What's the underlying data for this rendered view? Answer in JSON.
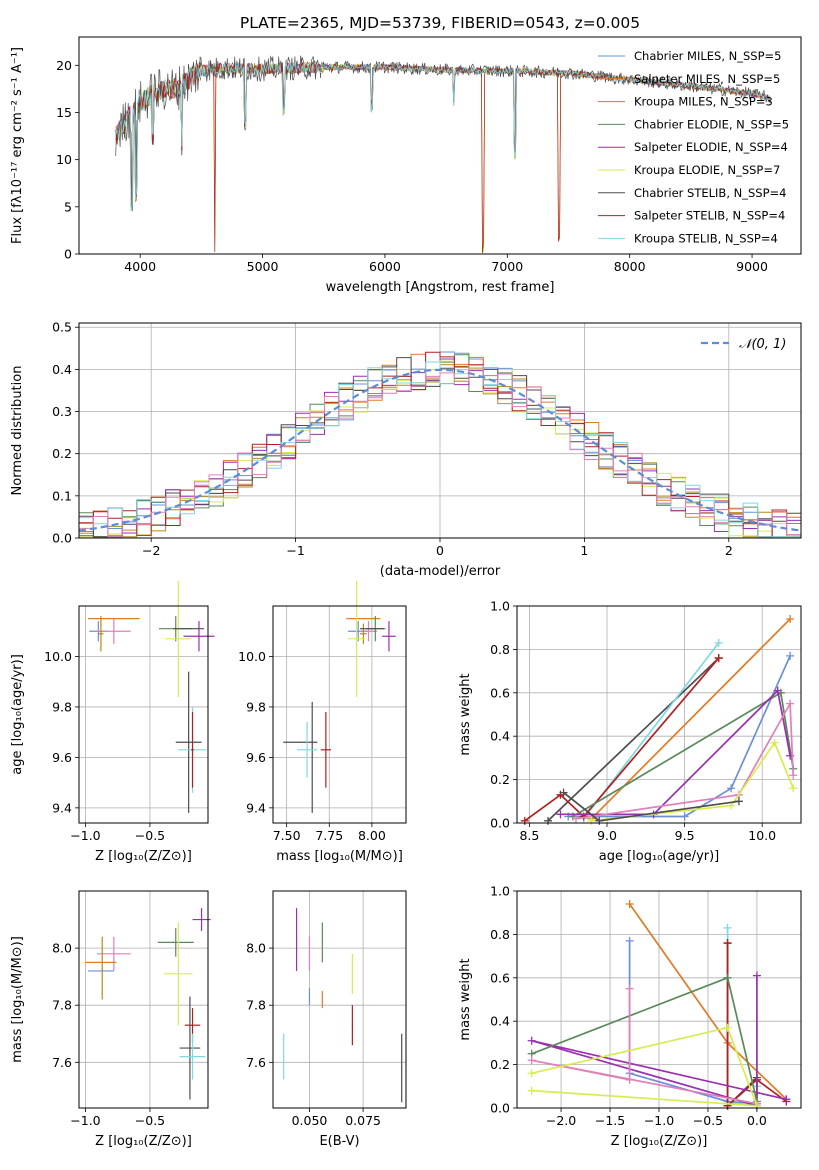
{
  "colors": {
    "chabrier_miles": "#6a8fd8",
    "salpeter_miles": "#e07b26",
    "kroupa_miles": "#b48a18",
    "chabrier_elodie": "#5a8a5a",
    "salpeter_elodie": "#9b2fb0",
    "kroupa_elodie": "#d8ec50",
    "chabrier_stelib": "#4d4d4d",
    "salpeter_stelib": "#b02020",
    "kroupa_stelib": "#7fd8e0",
    "pink": "#e27fb8",
    "gaussian": "#5b8ed6",
    "grid": "#b0b0b0"
  },
  "chart_data": [
    {
      "id": "spectrum",
      "type": "line",
      "title": "PLATE=2365, MJD=53739, FIBERID=0543, z=0.005",
      "xlabel": "wavelength [Angstrom, rest frame]",
      "ylabel": "Flux [fλ10⁻¹⁷ erg cm⁻² s⁻¹ A⁻¹]",
      "xlim": [
        3500,
        9400
      ],
      "ylim": [
        0,
        23
      ],
      "xticks": [
        "4000",
        "5000",
        "6000",
        "7000",
        "8000",
        "9000"
      ],
      "yticks": [
        "0",
        "5",
        "10",
        "15",
        "20"
      ],
      "grid": false,
      "legend_position": "top-right",
      "legend": [
        "Chabrier MILES, N_SSP=5",
        "Salpeter MILES, N_SSP=5",
        "Kroupa MILES, N_SSP=3",
        "Chabrier ELODIE, N_SSP=5",
        "Salpeter ELODIE, N_SSP=4",
        "Kroupa ELODIE, N_SSP=7",
        "Chabrier STELIB, N_SSP=4",
        "Salpeter STELIB, N_SSP=4",
        "Kroupa STELIB, N_SSP=4"
      ],
      "continuum": {
        "x": [
          3800,
          3900,
          4000,
          4100,
          4200,
          4300,
          4400,
          4500,
          4700,
          5000,
          5500,
          6000,
          6500,
          7000,
          7500,
          8000,
          8500,
          9000,
          9150
        ],
        "y": [
          12.5,
          14.5,
          16,
          17,
          17.5,
          17.5,
          18.5,
          19.5,
          19.7,
          19.6,
          19.8,
          19.8,
          19.5,
          19.4,
          19.2,
          18.5,
          17.8,
          17.0,
          16.5
        ]
      },
      "absorption_features": [
        {
          "x": 3933,
          "y": 4.5
        },
        {
          "x": 3968,
          "y": 5.5
        },
        {
          "x": 4101,
          "y": 11.5
        },
        {
          "x": 4340,
          "y": 10.2
        },
        {
          "x": 4610,
          "y": 0
        },
        {
          "x": 4861,
          "y": 13.0
        },
        {
          "x": 5175,
          "y": 14.5
        },
        {
          "x": 5890,
          "y": 15.0
        },
        {
          "x": 6563,
          "y": 15.5
        },
        {
          "x": 6800,
          "y": 0
        },
        {
          "x": 7060,
          "y": 10.0
        },
        {
          "x": 7420,
          "y": 0.8
        }
      ]
    },
    {
      "id": "residuals",
      "type": "line",
      "xlabel": "(data-model)/error",
      "ylabel": "Normed distribution",
      "xlim": [
        -2.5,
        2.5
      ],
      "ylim": [
        0,
        0.51
      ],
      "xticks": [
        "−2",
        "−1",
        "0",
        "1",
        "2"
      ],
      "yticks": [
        "0.0",
        "0.1",
        "0.2",
        "0.3",
        "0.4",
        "0.5"
      ],
      "grid": true,
      "legend_position": "top-right",
      "legend": [
        "𝒩(0, 1)"
      ]
    },
    {
      "id": "age_vs_Z",
      "type": "scatter",
      "xlabel": "Z [log₁₀(Z/Z⊙)]",
      "ylabel": "age  [log₁₀(age/yr)]",
      "xlim": [
        -1.05,
        -0.05
      ],
      "ylim": [
        9.34,
        10.2
      ],
      "xticks": [
        "−1.0",
        "−0.5"
      ],
      "yticks": [
        "9.4",
        "9.6",
        "9.8",
        "10.0"
      ],
      "grid": true,
      "points": [
        {
          "c": "salpeter_miles",
          "x": -0.78,
          "y": 10.15,
          "xe": 0.2,
          "ye": 0.0
        },
        {
          "c": "chabrier_miles",
          "x": -0.9,
          "y": 10.1,
          "xe": 0.07,
          "ye": 0.04
        },
        {
          "c": "pink",
          "x": -0.78,
          "y": 10.1,
          "xe": 0.13,
          "ye": 0.05
        },
        {
          "c": "kroupa_miles",
          "x": -0.88,
          "y": 10.09,
          "xe": 0.02,
          "ye": 0.07
        },
        {
          "c": "chabrier_elodie",
          "x": -0.3,
          "y": 10.11,
          "xe": 0.13,
          "ye": 0.05
        },
        {
          "c": "kroupa_elodie",
          "x": -0.28,
          "y": 10.07,
          "xe": 0.1,
          "ye": 0.23
        },
        {
          "c": "salpeter_elodie",
          "x": -0.12,
          "y": 10.08,
          "xe": 0.12,
          "ye": 0.06
        },
        {
          "c": "chabrier_stelib",
          "x": -0.2,
          "y": 10.11,
          "xe": 0.12,
          "ye": 0.0
        },
        {
          "c": "chabrier_stelib",
          "x": -0.2,
          "y": 9.66,
          "xe": 0.1,
          "ye": 0.28
        },
        {
          "c": "kroupa_stelib",
          "x": -0.17,
          "y": 9.63,
          "xe": 0.11,
          "ye": 0.17
        },
        {
          "c": "salpeter_stelib",
          "x": -0.17,
          "y": 9.63,
          "xe": 0.01,
          "ye": 0.15
        }
      ]
    },
    {
      "id": "age_vs_mass",
      "type": "scatter",
      "xlabel": "mass [log₁₀(M/M⊙)]",
      "ylabel": "",
      "xlim": [
        7.42,
        8.2
      ],
      "ylim": [
        9.34,
        10.2
      ],
      "xticks": [
        "7.50",
        "7.75",
        "8.00"
      ],
      "yticks": [
        "9.4",
        "9.6",
        "9.8",
        "10.0"
      ],
      "grid": true,
      "points": [
        {
          "c": "salpeter_miles",
          "x": 7.95,
          "y": 10.15,
          "xe": 0.1,
          "ye": 0.0
        },
        {
          "c": "chabrier_miles",
          "x": 7.92,
          "y": 10.1,
          "xe": 0.06,
          "ye": 0.04
        },
        {
          "c": "pink",
          "x": 7.98,
          "y": 10.1,
          "xe": 0.05,
          "ye": 0.04
        },
        {
          "c": "kroupa_miles",
          "x": 7.95,
          "y": 10.09,
          "xe": 0.02,
          "ye": 0.04
        },
        {
          "c": "kroupa_elodie",
          "x": 7.91,
          "y": 10.07,
          "xe": 0.05,
          "ye": 0.23
        },
        {
          "c": "chabrier_elodie",
          "x": 8.02,
          "y": 10.11,
          "xe": 0.06,
          "ye": 0.05
        },
        {
          "c": "chabrier_stelib",
          "x": 8.0,
          "y": 10.11,
          "xe": 0.07,
          "ye": 0.0
        },
        {
          "c": "salpeter_elodie",
          "x": 8.1,
          "y": 10.08,
          "xe": 0.04,
          "ye": 0.06
        },
        {
          "c": "chabrier_stelib",
          "x": 7.58,
          "y": 9.66,
          "xe": 0.1,
          "ye": 0.0
        },
        {
          "c": "chabrier_stelib",
          "x": 7.65,
          "y": 9.6,
          "xe": 0.0,
          "ye": 0.22
        },
        {
          "c": "kroupa_stelib",
          "x": 7.62,
          "y": 9.63,
          "xe": 0.06,
          "ye": 0.11
        },
        {
          "c": "salpeter_stelib",
          "x": 7.73,
          "y": 9.63,
          "xe": 0.03,
          "ye": 0.15
        }
      ]
    },
    {
      "id": "mass_weight_vs_age",
      "type": "line",
      "xlabel": "age  [log₁₀(age/yr)]",
      "ylabel": "mass weight",
      "xlim": [
        8.42,
        10.25
      ],
      "ylim": [
        0,
        1
      ],
      "xticks": [
        "8.5",
        "9.0",
        "9.5",
        "10.0"
      ],
      "yticks": [
        "0.0",
        "0.2",
        "0.4",
        "0.6",
        "0.8",
        "1.0"
      ],
      "grid": true,
      "series": [
        {
          "c": "salpeter_miles",
          "x": [
            8.9,
            10.18
          ],
          "y": [
            0.02,
            0.94
          ]
        },
        {
          "c": "chabrier_stelib",
          "x": [
            8.62,
            9.72
          ],
          "y": [
            0.01,
            0.76
          ]
        },
        {
          "c": "kroupa_stelib",
          "x": [
            8.85,
            9.72
          ],
          "y": [
            0.02,
            0.83
          ]
        },
        {
          "c": "chabrier_miles",
          "x": [
            8.75,
            9.5,
            9.8,
            10.18
          ],
          "y": [
            0.03,
            0.03,
            0.16,
            0.77
          ]
        },
        {
          "c": "salpeter_stelib",
          "x": [
            8.47,
            8.7,
            8.85,
            9.72
          ],
          "y": [
            0.01,
            0.13,
            0.03,
            0.76
          ]
        },
        {
          "c": "chabrier_elodie",
          "x": [
            8.78,
            10.12,
            10.2
          ],
          "y": [
            0.03,
            0.6,
            0.25
          ]
        },
        {
          "c": "salpeter_elodie",
          "x": [
            8.7,
            9.3,
            10.1,
            10.18
          ],
          "y": [
            0.04,
            0.04,
            0.61,
            0.31
          ]
        },
        {
          "c": "pink",
          "x": [
            8.8,
            9.85,
            10.18,
            10.2
          ],
          "y": [
            0.02,
            0.13,
            0.55,
            0.22
          ]
        },
        {
          "c": "kroupa_elodie",
          "x": [
            8.9,
            9.8,
            10.08,
            10.2
          ],
          "y": [
            0.01,
            0.08,
            0.37,
            0.16
          ]
        },
        {
          "c": "chabrier_stelib",
          "x": [
            8.72,
            8.95,
            9.85
          ],
          "y": [
            0.14,
            0.01,
            0.1
          ]
        }
      ]
    },
    {
      "id": "mass_vs_Z",
      "type": "scatter",
      "xlabel": "Z [log₁₀(Z/Z⊙)]",
      "ylabel": "mass [log₁₀(M/M⊙)]",
      "xlim": [
        -1.05,
        -0.05
      ],
      "ylim": [
        7.44,
        8.2
      ],
      "xticks": [
        "−1.0",
        "−0.5"
      ],
      "yticks": [
        "7.6",
        "7.8",
        "8.0"
      ],
      "grid": true,
      "points": [
        {
          "c": "pink",
          "x": -0.78,
          "y": 7.98,
          "xe": 0.13,
          "ye": 0.06
        },
        {
          "c": "salpeter_miles",
          "x": -0.88,
          "y": 7.95,
          "xe": 0.12,
          "ye": 0.0
        },
        {
          "c": "chabrier_miles",
          "x": -0.88,
          "y": 7.92,
          "xe": 0.1,
          "ye": 0.0
        },
        {
          "c": "kroupa_miles",
          "x": -0.87,
          "y": 7.93,
          "xe": 0.0,
          "ye": 0.11
        },
        {
          "c": "chabrier_elodie",
          "x": -0.3,
          "y": 8.02,
          "xe": 0.14,
          "ye": 0.05
        },
        {
          "c": "kroupa_elodie",
          "x": -0.28,
          "y": 7.91,
          "xe": 0.11,
          "ye": 0.18
        },
        {
          "c": "salpeter_elodie",
          "x": -0.1,
          "y": 8.1,
          "xe": 0.07,
          "ye": 0.04
        },
        {
          "c": "salpeter_stelib",
          "x": -0.17,
          "y": 7.73,
          "xe": 0.06,
          "ye": 0.06
        },
        {
          "c": "chabrier_stelib",
          "x": -0.19,
          "y": 7.65,
          "xe": 0.08,
          "ye": 0.18
        },
        {
          "c": "kroupa_stelib",
          "x": -0.17,
          "y": 7.62,
          "xe": 0.1,
          "ye": 0.08
        }
      ]
    },
    {
      "id": "mass_vs_ebv",
      "type": "scatter",
      "xlabel": "E(B-V)",
      "ylabel": "",
      "xlim": [
        0.033,
        0.095
      ],
      "ylim": [
        7.44,
        8.2
      ],
      "xticks": [
        "0.050",
        "0.075"
      ],
      "yticks": [
        "7.6",
        "7.8",
        "8.0"
      ],
      "grid": true,
      "points": [
        {
          "c": "salpeter_elodie",
          "x": 0.044,
          "y": 8.03,
          "xe": 0.0,
          "ye": 0.11
        },
        {
          "c": "pink",
          "x": 0.05,
          "y": 7.98,
          "xe": 0.0,
          "ye": 0.06
        },
        {
          "c": "chabrier_miles",
          "x": 0.05,
          "y": 7.83,
          "xe": 0.0,
          "ye": 0.03
        },
        {
          "c": "chabrier_elodie",
          "x": 0.056,
          "y": 8.02,
          "xe": 0.0,
          "ye": 0.07
        },
        {
          "c": "salpeter_miles",
          "x": 0.056,
          "y": 7.82,
          "xe": 0.0,
          "ye": 0.03
        },
        {
          "c": "kroupa_elodie",
          "x": 0.07,
          "y": 7.91,
          "xe": 0.0,
          "ye": 0.07
        },
        {
          "c": "salpeter_stelib",
          "x": 0.07,
          "y": 7.73,
          "xe": 0.0,
          "ye": 0.07
        },
        {
          "c": "kroupa_stelib",
          "x": 0.038,
          "y": 7.62,
          "xe": 0.0,
          "ye": 0.08
        },
        {
          "c": "chabrier_stelib",
          "x": 0.093,
          "y": 7.58,
          "xe": 0.0,
          "ye": 0.12
        }
      ]
    },
    {
      "id": "mass_weight_vs_Z",
      "type": "line",
      "xlabel": "Z [log₁₀(Z/Z⊙)]",
      "ylabel": "mass weight",
      "xlim": [
        -2.45,
        0.45
      ],
      "ylim": [
        0,
        1
      ],
      "xticks": [
        "−2.0",
        "−1.5",
        "−1.0",
        "−0.5",
        "0.0"
      ],
      "yticks": [
        "0.0",
        "0.2",
        "0.4",
        "0.6",
        "0.8",
        "1.0"
      ],
      "grid": true,
      "series": [
        {
          "c": "salpeter_miles",
          "x": [
            -1.3,
            -0.3,
            0.3
          ],
          "y": [
            0.94,
            0.3,
            0.04
          ]
        },
        {
          "c": "chabrier_miles",
          "x": [
            -1.3,
            -1.3,
            -0.3,
            0.0
          ],
          "y": [
            0.77,
            0.16,
            0.03,
            0.02
          ]
        },
        {
          "c": "kroupa_stelib",
          "x": [
            -0.3,
            -0.3,
            0.0,
            0.0
          ],
          "y": [
            0.83,
            0.02,
            0.02,
            0.1
          ]
        },
        {
          "c": "chabrier_stelib",
          "x": [
            -0.3,
            -0.3,
            0.0,
            0.0
          ],
          "y": [
            0.76,
            0.01,
            0.14,
            0.01
          ]
        },
        {
          "c": "salpeter_stelib",
          "x": [
            -0.3,
            -0.3,
            0.0,
            0.3
          ],
          "y": [
            0.76,
            0.01,
            0.13,
            0.03
          ]
        },
        {
          "c": "salpeter_elodie",
          "x": [
            0.0,
            0.0,
            -2.3,
            0.3
          ],
          "y": [
            0.61,
            0.01,
            0.31,
            0.04
          ]
        },
        {
          "c": "chabrier_elodie",
          "x": [
            -2.3,
            -0.3,
            0.0
          ],
          "y": [
            0.25,
            0.6,
            0.03
          ]
        },
        {
          "c": "pink",
          "x": [
            -1.3,
            -1.3,
            -2.3,
            0.0
          ],
          "y": [
            0.55,
            0.13,
            0.22,
            0.02
          ]
        },
        {
          "c": "kroupa_elodie",
          "x": [
            -2.3,
            -0.3,
            0.0,
            -2.3
          ],
          "y": [
            0.16,
            0.37,
            0.01,
            0.08
          ]
        }
      ]
    }
  ]
}
